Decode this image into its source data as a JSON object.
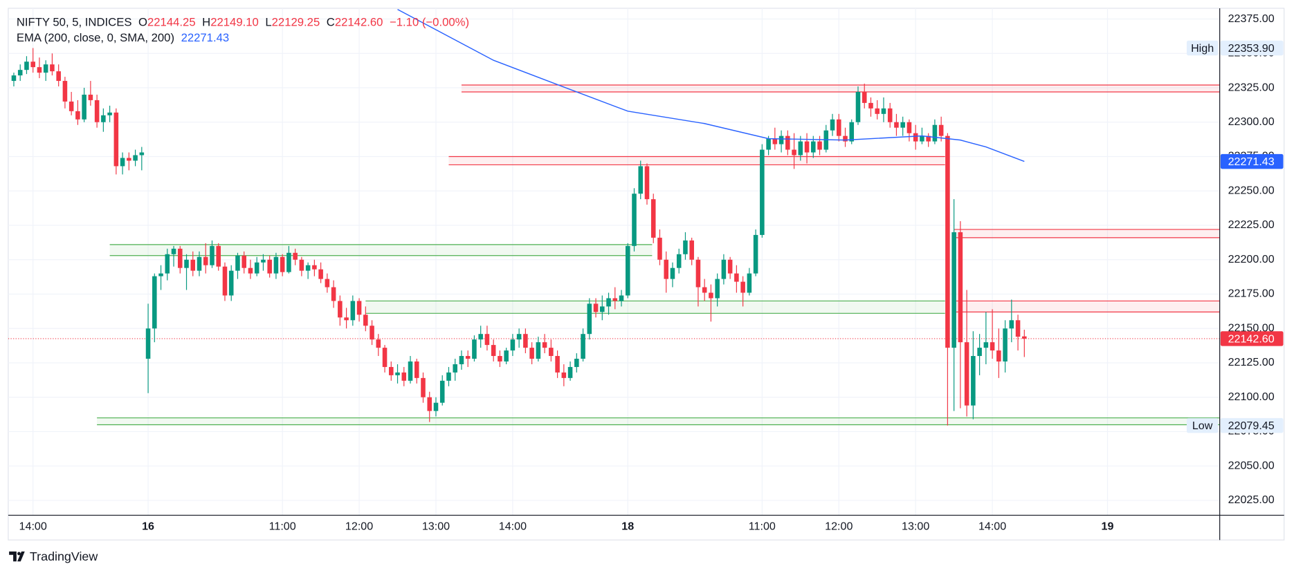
{
  "chart_data": {
    "type": "candlestick",
    "title": "NIFTY 50, 5, INDICES",
    "ohlc_header": [
      {
        "key": "O",
        "value": "22144.25"
      },
      {
        "key": "H",
        "value": "22149.10"
      },
      {
        "key": "L",
        "value": "22129.25"
      },
      {
        "key": "C",
        "value": "22142.60"
      }
    ],
    "change": "−1.10 (−0.00%)",
    "up_color": "#089981",
    "down_color": "#f23645",
    "x": [
      0,
      1,
      2,
      3,
      4,
      5,
      6,
      7,
      8,
      9,
      10,
      11,
      12,
      13,
      14,
      15,
      16,
      17,
      18,
      19,
      20,
      21,
      22,
      23,
      24,
      25,
      26,
      27,
      28,
      29,
      30,
      31,
      32,
      33,
      34,
      35,
      36,
      37,
      38,
      39,
      40,
      41,
      42,
      43,
      44,
      45,
      46,
      47,
      48,
      49,
      50,
      51,
      52,
      53,
      54,
      55,
      56,
      57,
      58,
      59,
      60,
      61,
      62,
      63,
      64,
      65,
      66,
      67,
      68,
      69,
      70,
      71,
      72,
      73,
      74,
      75,
      76,
      77,
      78,
      79,
      80,
      81,
      82,
      83,
      84,
      85,
      86,
      87,
      88,
      89,
      90,
      91,
      92,
      93,
      94,
      95,
      96,
      97,
      98,
      99,
      100,
      101,
      102,
      103,
      104,
      105,
      106,
      107,
      108,
      109,
      110,
      111,
      112,
      113,
      114,
      115,
      116,
      117,
      118,
      119,
      120,
      121,
      122,
      123,
      124,
      125,
      126,
      127,
      128,
      129,
      130,
      131,
      132,
      133,
      134,
      135,
      136,
      137,
      138,
      139,
      140,
      141,
      142,
      143,
      144,
      145,
      146,
      147,
      148,
      149,
      150,
      151,
      152,
      153,
      154,
      155,
      156,
      157,
      158
    ],
    "open": [
      22330,
      22334,
      22338,
      22344,
      22340,
      22336,
      22342,
      22337,
      22330,
      22315,
      22308,
      22302,
      22320,
      22316,
      22300,
      22305,
      22307,
      22268,
      22274,
      22272,
      22276,
      22128,
      22150,
      22188,
      22190,
      22204,
      22208,
      22194,
      22200,
      22192,
      22202,
      22196,
      22210,
      22195,
      22174,
      22192,
      22203,
      22194,
      22190,
      22198,
      22200,
      22190,
      22202,
      22191,
      22205,
      22200,
      22192,
      22196,
      22193,
      22186,
      22180,
      22170,
      22158,
      22156,
      22170,
      22160,
      22152,
      22142,
      22136,
      22122,
      22116,
      22118,
      22112,
      22126,
      22114,
      22100,
      22090,
      22096,
      22112,
      22118,
      22124,
      22130,
      22128,
      22142,
      22146,
      22138,
      22130,
      22126,
      22134,
      22142,
      22146,
      22136,
      22128,
      22140,
      22136,
      22130,
      22118,
      22114,
      22122,
      22128,
      22146,
      22168,
      22162,
      22166,
      22172,
      22170,
      22174,
      22210,
      22248,
      22268,
      22244,
      22216,
      22200,
      22186,
      22194,
      22204,
      22214,
      22200,
      22180,
      22176,
      22172,
      22186,
      22200,
      22190,
      22184,
      22176,
      22190,
      22218,
      22280,
      22288,
      22284,
      22290,
      22280,
      22276,
      22286,
      22278,
      22286,
      22280,
      22294,
      22302,
      22290,
      22286,
      22300,
      22322,
      22314,
      22310,
      22306,
      22310,
      22300,
      22296,
      22300,
      22292,
      22286,
      22290,
      22286,
      22298,
      22290,
      22136,
      22220,
      22140,
      22094,
      22130,
      22136,
      22140,
      22134,
      22126,
      22150,
      22156,
      22144.25
    ],
    "high": [
      22336,
      22342,
      22348,
      22353.9,
      22347,
      22345,
      22350,
      22342,
      22333,
      22322,
      22316,
      22325,
      22330,
      22320,
      22310,
      22312,
      22310,
      22278,
      22278,
      22280,
      22282,
      22168,
      22190,
      22196,
      22208,
      22210,
      22210,
      22204,
      22206,
      22206,
      22212,
      22214,
      22212,
      22198,
      22196,
      22205,
      22206,
      22200,
      22202,
      22204,
      22203,
      22205,
      22204,
      22210,
      22208,
      22202,
      22198,
      22200,
      22198,
      22190,
      22185,
      22174,
      22165,
      22174,
      22172,
      22166,
      22156,
      22146,
      22138,
      22126,
      22124,
      22122,
      22130,
      22128,
      22118,
      22104,
      22100,
      22116,
      22122,
      22128,
      22134,
      22134,
      22145,
      22152,
      22152,
      22142,
      22134,
      22136,
      22146,
      22150,
      22150,
      22140,
      22144,
      22146,
      22142,
      22134,
      22124,
      22126,
      22132,
      22150,
      22172,
      22172,
      22174,
      22176,
      22180,
      22178,
      22212,
      22252,
      22272,
      22270,
      22248,
      22222,
      22206,
      22198,
      22208,
      22220,
      22216,
      22202,
      22186,
      22182,
      22190,
      22204,
      22202,
      22196,
      22188,
      22194,
      22222,
      22284,
      22290,
      22296,
      22294,
      22294,
      22292,
      22290,
      22292,
      22290,
      22290,
      22298,
      22306,
      22306,
      22296,
      22302,
      22326,
      22328,
      22318,
      22316,
      22318,
      22314,
      22306,
      22304,
      22302,
      22298,
      22296,
      22292,
      22302,
      22304,
      22292,
      22244,
      22228,
      22178,
      22148,
      22146,
      22162,
      22164,
      22150,
      22156,
      22171,
      22160,
      22149.1
    ],
    "low": [
      22326,
      22330,
      22335,
      22336,
      22332,
      22330,
      22334,
      22326,
      22310,
      22305,
      22298,
      22300,
      22312,
      22296,
      22293,
      22300,
      22262,
      22262,
      22265,
      22268,
      22265,
      22103,
      22140,
      22178,
      22185,
      22195,
      22190,
      22178,
      22188,
      22188,
      22190,
      22194,
      22192,
      22170,
      22170,
      22186,
      22190,
      22186,
      22188,
      22192,
      22187,
      22186,
      22188,
      22190,
      22196,
      22188,
      22186,
      22188,
      22183,
      22176,
      22165,
      22152,
      22150,
      22152,
      22155,
      22148,
      22138,
      22130,
      22118,
      22112,
      22110,
      22108,
      22110,
      22110,
      22096,
      22082,
      22086,
      22094,
      22108,
      22112,
      22120,
      22122,
      22126,
      22136,
      22134,
      22126,
      22122,
      22124,
      22130,
      22136,
      22132,
      22124,
      22126,
      22132,
      22126,
      22114,
      22108,
      22112,
      22118,
      22126,
      22142,
      22158,
      22156,
      22160,
      22164,
      22166,
      22172,
      22206,
      22244,
      22240,
      22212,
      22196,
      22176,
      22180,
      22190,
      22200,
      22196,
      22166,
      22170,
      22155,
      22166,
      22182,
      22186,
      22176,
      22166,
      22174,
      22188,
      22216,
      22276,
      22280,
      22278,
      22276,
      22266,
      22272,
      22270,
      22274,
      22276,
      22278,
      22290,
      22286,
      22282,
      22284,
      22298,
      22310,
      22304,
      22302,
      22300,
      22296,
      22290,
      22290,
      22286,
      22280,
      22284,
      22282,
      22284,
      22286,
      22079.45,
      22090,
      22092,
      22086,
      22084,
      22116,
      22124,
      22128,
      22114,
      22118,
      22140,
      22134,
      22129.25
    ],
    "close": [
      22334,
      22338,
      22344,
      22340,
      22336,
      22342,
      22337,
      22330,
      22315,
      22308,
      22302,
      22320,
      22316,
      22300,
      22305,
      22307,
      22268,
      22274,
      22272,
      22276,
      22278,
      22150,
      22188,
      22190,
      22204,
      22208,
      22194,
      22200,
      22192,
      22202,
      22196,
      22210,
      22195,
      22174,
      22192,
      22203,
      22194,
      22190,
      22198,
      22200,
      22190,
      22202,
      22191,
      22205,
      22200,
      22192,
      22196,
      22193,
      22186,
      22180,
      22170,
      22158,
      22156,
      22170,
      22160,
      22152,
      22142,
      22136,
      22122,
      22116,
      22118,
      22112,
      22126,
      22114,
      22100,
      22090,
      22096,
      22112,
      22118,
      22124,
      22130,
      22128,
      22142,
      22146,
      22138,
      22130,
      22126,
      22134,
      22142,
      22146,
      22136,
      22128,
      22140,
      22136,
      22130,
      22118,
      22114,
      22122,
      22128,
      22146,
      22168,
      22162,
      22166,
      22172,
      22170,
      22174,
      22210,
      22248,
      22268,
      22244,
      22216,
      22200,
      22186,
      22194,
      22204,
      22214,
      22200,
      22180,
      22176,
      22172,
      22186,
      22200,
      22190,
      22184,
      22176,
      22190,
      22218,
      22280,
      22288,
      22284,
      22290,
      22280,
      22276,
      22286,
      22278,
      22286,
      22280,
      22294,
      22302,
      22290,
      22286,
      22300,
      22322,
      22314,
      22310,
      22306,
      22310,
      22300,
      22296,
      22300,
      22292,
      22286,
      22290,
      22286,
      22298,
      22290,
      22136,
      22220,
      22140,
      22094,
      22130,
      22136,
      22140,
      22134,
      22126,
      22150,
      22156,
      22144,
      22142.6
    ],
    "indicator": {
      "name": "EMA (200, close, 0, SMA, 200)",
      "value_label": "22271.43",
      "color": "#2962ff",
      "x": [
        60,
        75,
        88,
        96,
        108,
        118,
        130,
        142,
        148,
        152,
        158
      ],
      "values": [
        22382,
        22345,
        22322,
        22308,
        22299,
        22288,
        22287,
        22290,
        22287,
        22282,
        22271.43
      ]
    },
    "zones": [
      {
        "color": "#f23645",
        "top": 22327,
        "bottom": 22322,
        "x": [
          70,
          188.55
        ]
      },
      {
        "color": "#f23645",
        "top": 22275,
        "bottom": 22269,
        "x": [
          68,
          145.6
        ]
      },
      {
        "color": "#f23645",
        "top": 22222,
        "bottom": 22216,
        "x": [
          147,
          188.55
        ]
      },
      {
        "color": "#f23645",
        "top": 22170,
        "bottom": 22162,
        "x": [
          147,
          188.55
        ]
      },
      {
        "color": "#4caf50",
        "top": 22211,
        "bottom": 22203,
        "x": [
          15,
          99.8
        ]
      },
      {
        "color": "#4caf50",
        "top": 22170,
        "bottom": 22161,
        "x": [
          55,
          145.6
        ]
      },
      {
        "color": "#4caf50",
        "top": 22085,
        "bottom": 22080,
        "x": [
          13,
          188.55
        ]
      }
    ],
    "markers": [
      {
        "label": "High",
        "value_label": "22353.90"
      },
      {
        "label": "Low",
        "value_label": "22079.45"
      }
    ],
    "last_price_label": "22142.60",
    "xlim": [
      -0.87,
      188.55
    ],
    "ylim": [
      22014.2,
      22382.8
    ],
    "xticks": [
      {
        "value": 3,
        "label": "14:00"
      },
      {
        "value": 21,
        "label": "16"
      },
      {
        "value": 42,
        "label": "11:00"
      },
      {
        "value": 54,
        "label": "12:00"
      },
      {
        "value": 66,
        "label": "13:00"
      },
      {
        "value": 78,
        "label": "14:00"
      },
      {
        "value": 96,
        "label": "18"
      },
      {
        "value": 117,
        "label": "11:00"
      },
      {
        "value": 129,
        "label": "12:00"
      },
      {
        "value": 141,
        "label": "13:00"
      },
      {
        "value": 153,
        "label": "14:00"
      },
      {
        "value": 171,
        "label": "19"
      }
    ],
    "yticks": [
      {
        "value": 22025,
        "label": "22025.00"
      },
      {
        "value": 22050,
        "label": "22050.00"
      },
      {
        "value": 22075,
        "label": "22075.00"
      },
      {
        "value": 22100,
        "label": "22100.00"
      },
      {
        "value": 22125,
        "label": "22125.00"
      },
      {
        "value": 22150,
        "label": "22150.00"
      },
      {
        "value": 22175,
        "label": "22175.00"
      },
      {
        "value": 22200,
        "label": "22200.00"
      },
      {
        "value": 22225,
        "label": "22225.00"
      },
      {
        "value": 22250,
        "label": "22250.00"
      },
      {
        "value": 22275,
        "label": "22275.00"
      },
      {
        "value": 22300,
        "label": "22300.00"
      },
      {
        "value": 22325,
        "label": "22325.00"
      },
      {
        "value": 22350,
        "label": "22350.00"
      },
      {
        "value": 22375,
        "label": "22375.00"
      }
    ],
    "grid": true,
    "brand": "TradingView"
  }
}
